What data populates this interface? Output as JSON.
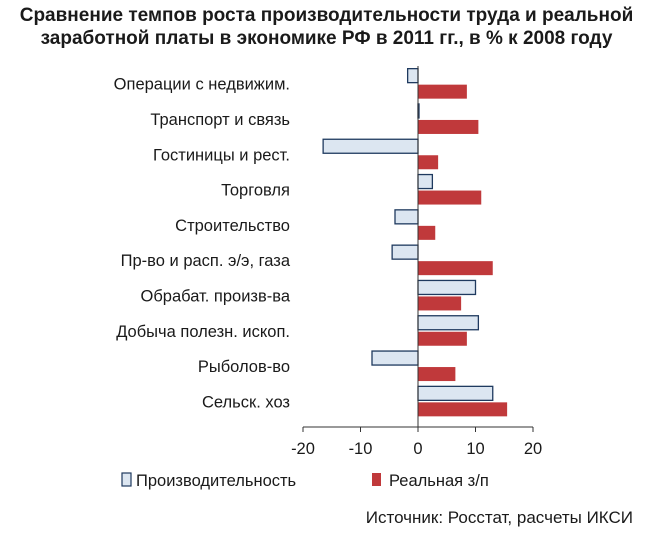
{
  "title_line1": "Сравнение темпов роста производительности труда и реальной",
  "title_line2": "заработной платы в экономике РФ в 2011 гг., в % к 2008 году",
  "source": "Источник: Росстат, расчеты ИКСИ",
  "colors": {
    "productivity_fill": "#dce6f1",
    "productivity_stroke": "#1f3a5f",
    "wage_fill": "#c0393b"
  },
  "chart_data": {
    "type": "bar",
    "orientation": "horizontal",
    "categories": [
      "Операции с недвижим.",
      "Транспорт и связь",
      "Гостиницы и рест.",
      "Торговля",
      "Строительство",
      "Пр-во и расп. э/э, газа",
      "Обрабат. произв-ва",
      "Добыча полезн. ископ.",
      "Рыболов-во",
      "Сельск. хоз"
    ],
    "series": [
      {
        "name": "Производительность",
        "values": [
          -1.8,
          0.1,
          -16.5,
          2.5,
          -4,
          -4.5,
          10,
          10.5,
          -8,
          13
        ]
      },
      {
        "name": "Реальная з/п",
        "values": [
          8.5,
          10.5,
          3.5,
          11,
          3,
          13,
          7.5,
          8.5,
          6.5,
          15.5
        ]
      }
    ],
    "xlim": [
      -20,
      20
    ],
    "xticks": [
      "-20",
      "-10",
      "0",
      "10",
      "20"
    ],
    "legend_position": "bottom",
    "grid": false
  }
}
